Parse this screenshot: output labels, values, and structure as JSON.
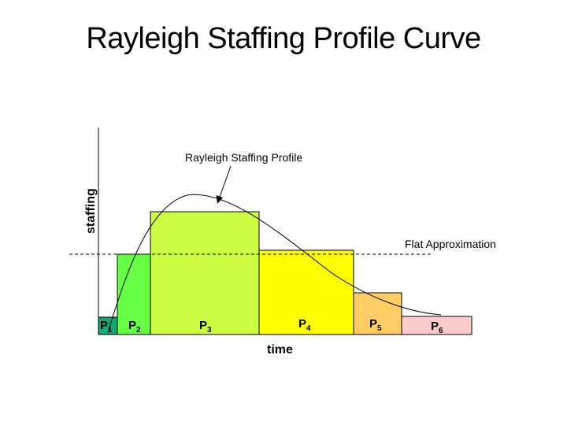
{
  "title": "Rayleigh Staffing Profile Curve",
  "axes": {
    "x_label": "time",
    "y_label": "staffing"
  },
  "annotations": {
    "curve_label": "Rayleigh Staffing Profile",
    "flat_label": "Flat Approximation"
  },
  "phases": [
    {
      "letter": "P",
      "sub": "1",
      "color": "#14a878"
    },
    {
      "letter": "P",
      "sub": "2",
      "color": "#66ff44"
    },
    {
      "letter": "P",
      "sub": "3",
      "color": "#ccff44"
    },
    {
      "letter": "P",
      "sub": "4",
      "color": "#ffff00"
    },
    {
      "letter": "P",
      "sub": "5",
      "color": "#ffcc66"
    },
    {
      "letter": "P",
      "sub": "6",
      "color": "#ffcccc"
    }
  ]
}
